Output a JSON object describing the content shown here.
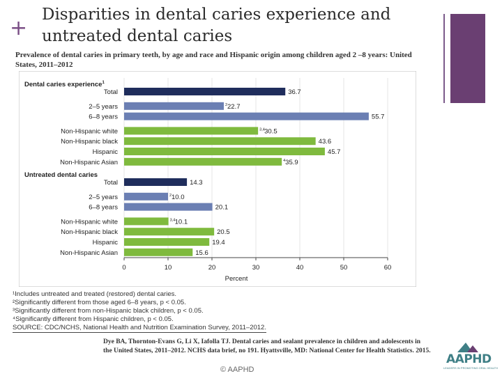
{
  "slide": {
    "title_line1": "Disparities in dental caries experience and",
    "title_line2": "untreated dental caries",
    "subtitle": "Prevalence of dental caries in primary teeth, by age and race and Hispanic origin among children aged 2 –8 years: United States, 2011–2012",
    "notes": [
      "¹Includes untreated and treated (restored) dental caries.",
      "²Significantly different from those aged 6–8 years, p < 0.05.",
      "³Significantly different from non-Hispanic black children, p < 0.05.",
      "⁴Significantly different from Hispanic children, p < 0.05."
    ],
    "source": "SOURCE: CDC/NCHS, National Health and Nutrition Examination Survey, 2011–2012.",
    "citation": "Dye BA, Thornton-Evans G, Li X, Iafolla TJ. Dental caries and sealant prevalence in children and adolescents in the United States, 2011–2012. NCHS data brief, no 191. Hyattsville, MD: National Center for Health Statistics. 2015.",
    "copyright": "© AAPHD",
    "logo_text": "AAPHD",
    "logo_tagline": "LEADERS IN PROMOTING ORAL HEALTH"
  },
  "colors": {
    "total_bar": "#1f2d5c",
    "age_bar": "#6b7fb3",
    "race_bar": "#7fba3e",
    "accent_purple": "#6a3f72"
  },
  "chart_data": {
    "type": "bar",
    "orientation": "horizontal",
    "xlabel": "Percent",
    "xlim": [
      0,
      60
    ],
    "xticks": [
      0,
      10,
      20,
      30,
      40,
      50,
      60
    ],
    "groups": [
      {
        "heading": "Dental caries experience",
        "heading_sup": "1",
        "bars": [
          {
            "label": "Total",
            "value": 36.7,
            "value_label": "36.7",
            "sup": "",
            "kind": "total"
          },
          {
            "label": "2–5 years",
            "value": 22.7,
            "value_label": "22.7",
            "sup": "2",
            "kind": "age"
          },
          {
            "label": "6–8 years",
            "value": 55.7,
            "value_label": "55.7",
            "sup": "",
            "kind": "age"
          },
          {
            "label": "Non-Hispanic white",
            "value": 30.5,
            "value_label": "30.5",
            "sup": "3,4",
            "kind": "race"
          },
          {
            "label": "Non-Hispanic black",
            "value": 43.6,
            "value_label": "43.6",
            "sup": "",
            "kind": "race"
          },
          {
            "label": "Hispanic",
            "value": 45.7,
            "value_label": "45.7",
            "sup": "",
            "kind": "race"
          },
          {
            "label": "Non-Hispanic Asian",
            "value": 35.9,
            "value_label": "35.9",
            "sup": "4",
            "kind": "race"
          }
        ]
      },
      {
        "heading": "Untreated dental caries",
        "heading_sup": "",
        "bars": [
          {
            "label": "Total",
            "value": 14.3,
            "value_label": "14.3",
            "sup": "",
            "kind": "total"
          },
          {
            "label": "2–5 years",
            "value": 10.0,
            "value_label": "10.0",
            "sup": "2",
            "kind": "age"
          },
          {
            "label": "6–8 years",
            "value": 20.1,
            "value_label": "20.1",
            "sup": "",
            "kind": "age"
          },
          {
            "label": "Non-Hispanic white",
            "value": 10.1,
            "value_label": "10.1",
            "sup": "3,4",
            "kind": "race"
          },
          {
            "label": "Non-Hispanic black",
            "value": 20.5,
            "value_label": "20.5",
            "sup": "",
            "kind": "race"
          },
          {
            "label": "Hispanic",
            "value": 19.4,
            "value_label": "19.4",
            "sup": "",
            "kind": "race"
          },
          {
            "label": "Non-Hispanic Asian",
            "value": 15.6,
            "value_label": "15.6",
            "sup": "",
            "kind": "race"
          }
        ]
      }
    ]
  }
}
